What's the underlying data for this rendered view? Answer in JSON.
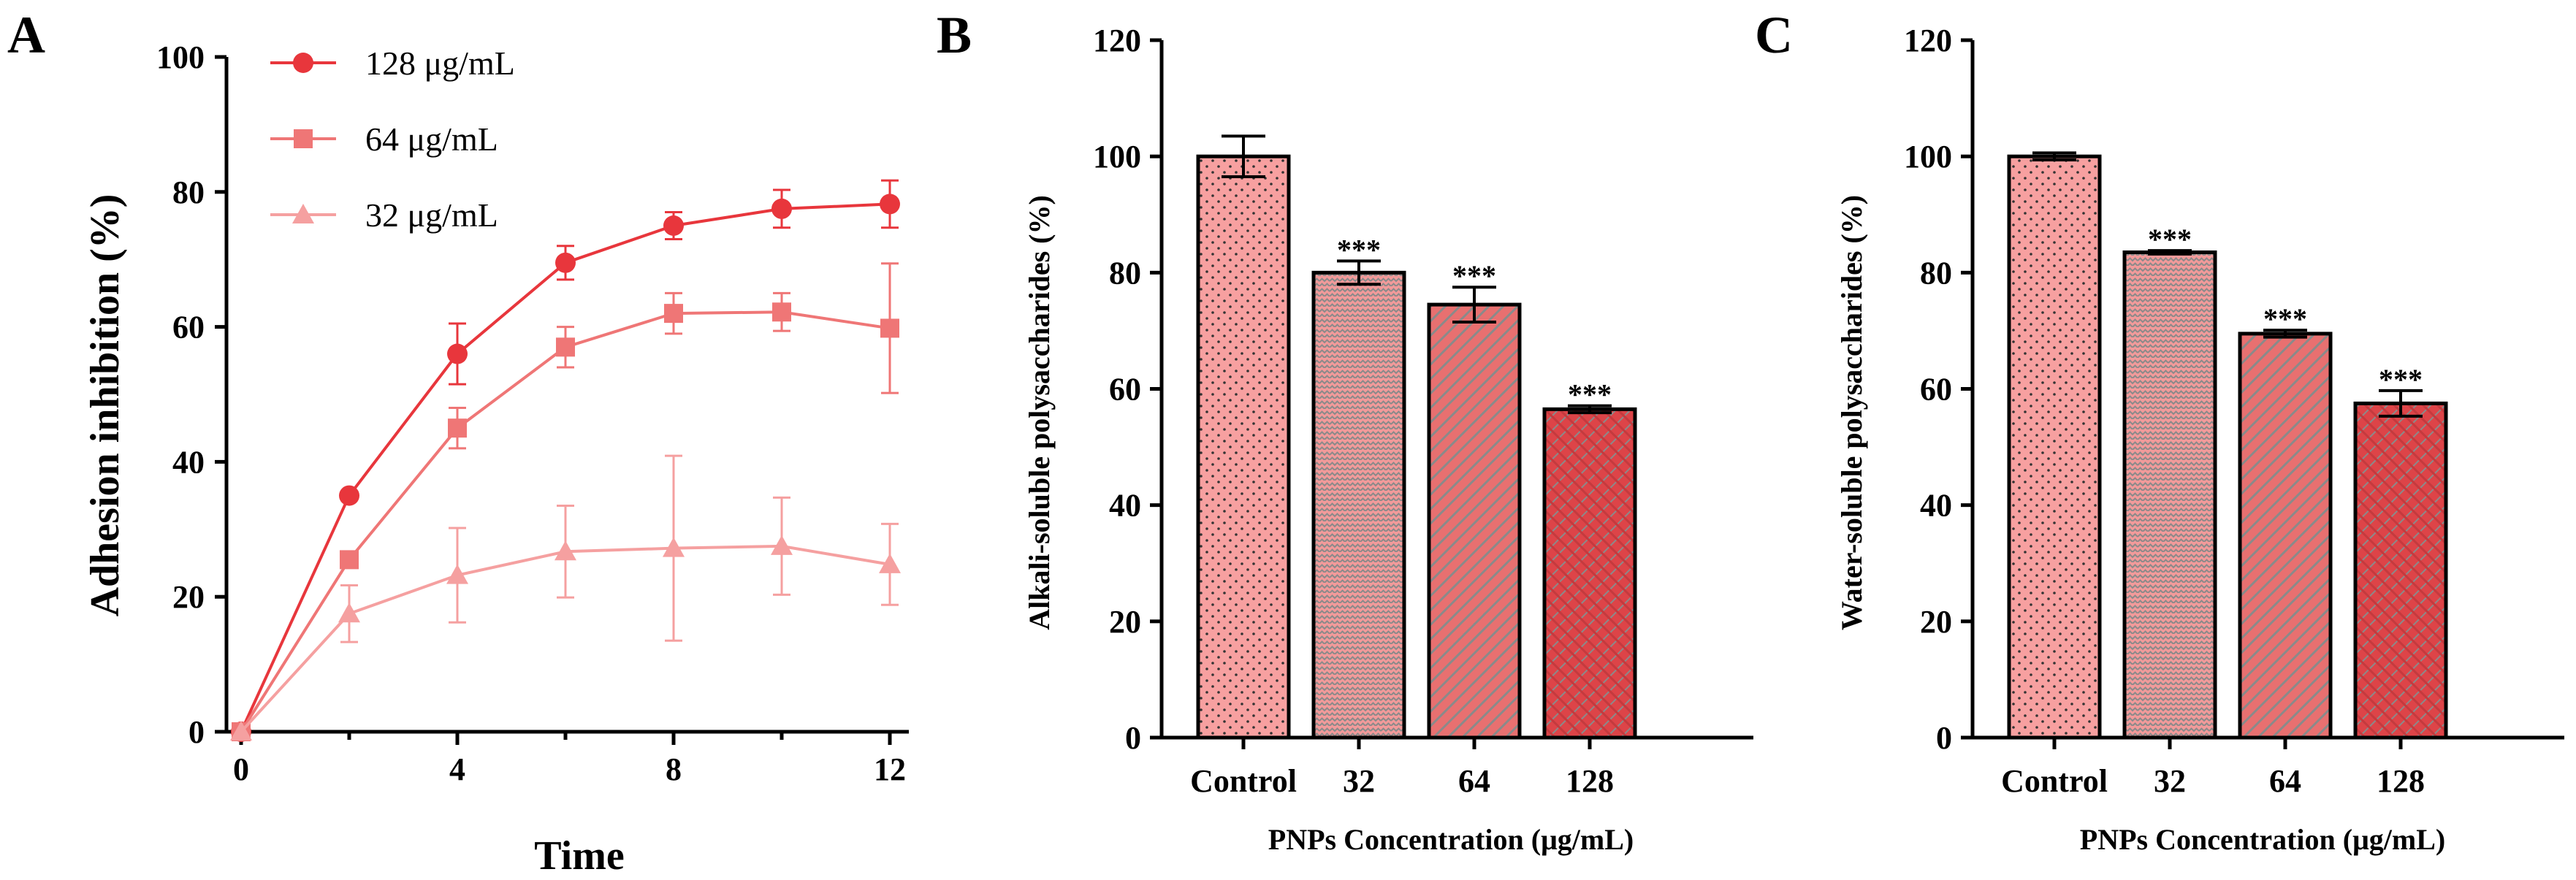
{
  "chart_data": [
    {
      "panel": "A",
      "type": "line",
      "xlabel": "Time",
      "ylabel": "Adhesion inhibition (%)",
      "xlim": [
        0,
        12
      ],
      "ylim": [
        0,
        100
      ],
      "xticks": [
        "0",
        "4",
        "8",
        "12"
      ],
      "yticks": [
        "0",
        "20",
        "40",
        "60",
        "80",
        "100"
      ],
      "x": [
        0,
        2,
        4,
        6,
        8,
        10,
        12
      ],
      "series": [
        {
          "name": "128 μg/mL",
          "marker": "circle",
          "color": "#e8363c",
          "values": [
            0,
            35,
            56,
            69.5,
            75,
            77.5,
            78.2
          ],
          "errors": [
            0,
            0.5,
            4.5,
            2.5,
            2,
            2.8,
            3.5
          ]
        },
        {
          "name": "64 μg/mL",
          "marker": "square",
          "color": "#ef7676",
          "values": [
            0,
            25.5,
            45,
            57,
            62,
            62.2,
            59.8
          ],
          "errors": [
            0,
            1,
            3,
            3,
            3,
            2.8,
            9.6
          ]
        },
        {
          "name": "32 μg/mL",
          "marker": "triangle",
          "color": "#f5a0a0",
          "values": [
            0,
            17.5,
            23.2,
            26.7,
            27.2,
            27.5,
            24.8
          ],
          "errors": [
            0,
            4.2,
            7,
            6.8,
            13.7,
            7.2,
            6
          ]
        }
      ]
    },
    {
      "panel": "B",
      "type": "bar",
      "xlabel": "PNPs Concentration  (μg/mL)",
      "ylabel": "Alkali-soluble polysaccharides (%)",
      "ylim": [
        0,
        120
      ],
      "yticks": [
        "0",
        "20",
        "40",
        "60",
        "80",
        "100",
        "120"
      ],
      "categories": [
        "Control",
        "32",
        "64",
        "128"
      ],
      "values": [
        100,
        80,
        74.5,
        56.5
      ],
      "errors": [
        3.5,
        2,
        3,
        0.6
      ],
      "significance": [
        "",
        "***",
        "***",
        "***"
      ]
    },
    {
      "panel": "C",
      "type": "bar",
      "xlabel": "PNPs Concentration  (μg/mL)",
      "ylabel": "Water-soluble polysaccharides (%)",
      "ylim": [
        0,
        120
      ],
      "yticks": [
        "0",
        "20",
        "40",
        "60",
        "80",
        "100",
        "120"
      ],
      "categories": [
        "Control",
        "32",
        "64",
        "128"
      ],
      "values": [
        100,
        83.5,
        69.5,
        57.5
      ],
      "errors": [
        0.6,
        0.3,
        0.6,
        2.2
      ],
      "significance": [
        "",
        "***",
        "***",
        "***"
      ]
    }
  ],
  "panels": {
    "a": "A",
    "b": "B",
    "c": "C"
  }
}
